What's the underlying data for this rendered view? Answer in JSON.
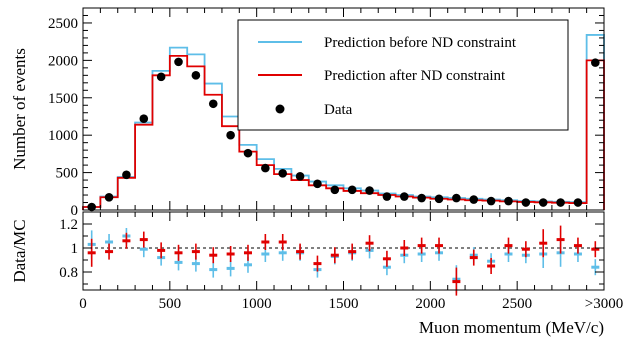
{
  "chart_data": [
    {
      "type": "histogram",
      "ylabel": "Number of events",
      "xlim": [
        0,
        3000
      ],
      "ylim": [
        0,
        2700
      ],
      "yticks": [
        0,
        500,
        1000,
        1500,
        2000,
        2500
      ],
      "bin_width": 100,
      "legend": {
        "position": "top-right",
        "entries": [
          "Prediction before ND constraint",
          "Prediction after ND constraint",
          "Data"
        ]
      },
      "colors": {
        "before": "#5ebee8",
        "after": "#e00000",
        "data": "#000000"
      },
      "series": [
        {
          "name": "Prediction before ND constraint",
          "values": [
            40,
            180,
            440,
            1170,
            1860,
            2170,
            2080,
            1690,
            1250,
            870,
            680,
            550,
            460,
            380,
            330,
            290,
            260,
            220,
            200,
            180,
            170,
            160,
            150,
            140,
            130,
            120,
            115,
            110,
            105,
            2340
          ]
        },
        {
          "name": "Prediction after ND constraint",
          "values": [
            40,
            170,
            430,
            1140,
            1800,
            2060,
            1920,
            1540,
            1120,
            780,
            600,
            480,
            400,
            330,
            290,
            255,
            225,
            200,
            180,
            165,
            150,
            140,
            130,
            125,
            115,
            108,
            103,
            98,
            93,
            2000
          ]
        },
        {
          "name": "Data",
          "x": [
            50,
            150,
            250,
            350,
            450,
            550,
            650,
            750,
            850,
            950,
            1050,
            1150,
            1250,
            1350,
            1450,
            1550,
            1650,
            1750,
            1850,
            1950,
            2050,
            2150,
            2250,
            2350,
            2450,
            2550,
            2650,
            2750,
            2850,
            2950
          ],
          "values": [
            40,
            170,
            470,
            1220,
            1780,
            1980,
            1800,
            1420,
            1000,
            760,
            560,
            490,
            450,
            350,
            270,
            270,
            260,
            180,
            180,
            160,
            150,
            160,
            140,
            120,
            120,
            100,
            100,
            100,
            100,
            1970
          ]
        }
      ]
    },
    {
      "type": "scatter",
      "xlabel": "Muon momentum (MeV/c)",
      "ylabel": "Data/MC",
      "xlim": [
        0,
        3000
      ],
      "ylim": [
        0.65,
        1.3
      ],
      "yticks": [
        0.8,
        1,
        1.2
      ],
      "ytick_labels": [
        "0.8",
        "1",
        "1.2"
      ],
      "xticks": [
        0,
        500,
        1000,
        1500,
        2000,
        2500,
        3000
      ],
      "xtick_labels": [
        "0",
        "500",
        "1000",
        "1500",
        "2000",
        "2500",
        ">3000"
      ],
      "reference_line": 1,
      "series": [
        {
          "name": "Data / prediction before ND constraint",
          "x": [
            50,
            150,
            250,
            350,
            450,
            550,
            650,
            750,
            850,
            950,
            1050,
            1150,
            1250,
            1350,
            1450,
            1550,
            1650,
            1750,
            1850,
            1950,
            2050,
            2150,
            2250,
            2350,
            2450,
            2550,
            2650,
            2750,
            2850,
            2950
          ],
          "values": [
            1.03,
            1.05,
            1.1,
            0.99,
            0.92,
            0.88,
            0.87,
            0.82,
            0.83,
            0.86,
            0.95,
            0.96,
            0.96,
            0.82,
            0.93,
            0.96,
            0.98,
            0.84,
            0.94,
            0.95,
            0.96,
            0.74,
            0.94,
            0.89,
            0.95,
            0.94,
            0.95,
            0.96,
            0.95,
            0.84
          ]
        },
        {
          "name": "Data / prediction after ND constraint",
          "x": [
            50,
            150,
            250,
            350,
            450,
            550,
            650,
            750,
            850,
            950,
            1050,
            1150,
            1250,
            1350,
            1450,
            1550,
            1650,
            1750,
            1850,
            1950,
            2050,
            2150,
            2250,
            2350,
            2450,
            2550,
            2650,
            2750,
            2850,
            2950
          ],
          "values": [
            0.96,
            0.97,
            1.06,
            1.07,
            0.98,
            0.96,
            0.97,
            0.94,
            0.95,
            0.96,
            1.05,
            1.05,
            0.97,
            0.87,
            0.94,
            0.97,
            1.04,
            0.91,
            1.0,
            1.02,
            1.02,
            0.72,
            0.92,
            0.85,
            1.02,
            0.99,
            1.04,
            1.07,
            1.02,
            0.99
          ]
        }
      ]
    }
  ]
}
